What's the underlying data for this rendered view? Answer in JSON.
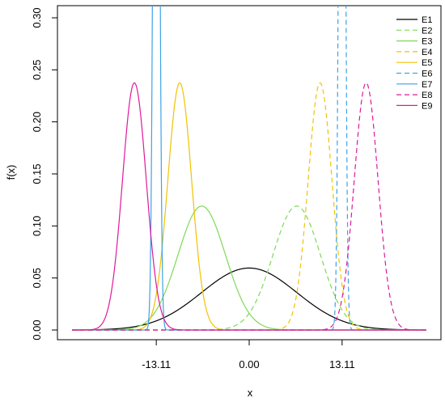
{
  "chart_data": {
    "type": "line",
    "title": "",
    "xlabel": "x",
    "ylabel": "f(x)",
    "xlim": [
      -25,
      25
    ],
    "ylim": [
      0,
      0.3
    ],
    "x_ticks": [
      -13.11,
      0.0,
      13.11
    ],
    "x_tick_labels": [
      "-13.11",
      "0.00",
      "13.11"
    ],
    "y_ticks": [
      0.0,
      0.05,
      0.1,
      0.15,
      0.2,
      0.25,
      0.3
    ],
    "y_tick_labels": [
      "0.00",
      "0.05",
      "0.10",
      "0.15",
      "0.20",
      "0.25",
      "0.30"
    ],
    "grid": false,
    "legend_position": "top-right",
    "series": [
      {
        "name": "E1",
        "color": "#000000",
        "dash": "solid",
        "mean": 0.0,
        "sd": 6.7
      },
      {
        "name": "E2",
        "color": "#7ED957",
        "dash": "dashed",
        "mean": 6.7,
        "sd": 3.35
      },
      {
        "name": "E3",
        "color": "#7ED957",
        "dash": "solid",
        "mean": -6.7,
        "sd": 3.35
      },
      {
        "name": "E4",
        "color": "#F2C200",
        "dash": "dashed",
        "mean": 10.0,
        "sd": 1.68
      },
      {
        "name": "E5",
        "color": "#F2C200",
        "dash": "solid",
        "mean": -9.8,
        "sd": 1.68
      },
      {
        "name": "E6",
        "color": "#3BA3E6",
        "dash": "dashed",
        "mean": 13.1,
        "sd": 0.35
      },
      {
        "name": "E7",
        "color": "#3BA3E6",
        "dash": "solid",
        "mean": -13.1,
        "sd": 0.35
      },
      {
        "name": "E8",
        "color": "#E0199B",
        "dash": "dashed",
        "mean": 16.5,
        "sd": 1.68
      },
      {
        "name": "E9",
        "color": "#E0199B",
        "dash": "solid",
        "mean": -16.2,
        "sd": 1.68
      }
    ]
  }
}
